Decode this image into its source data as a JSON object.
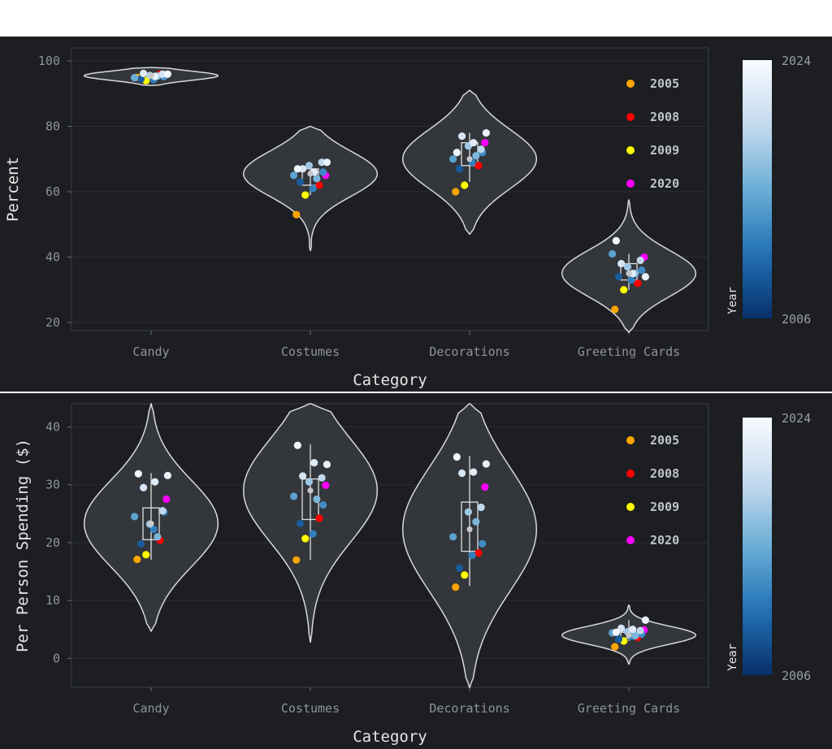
{
  "chart_data": [
    {
      "type": "violin",
      "xlabel": "Category",
      "ylabel": "Percent",
      "categories": [
        "Candy",
        "Costumes",
        "Decorations",
        "Greeting Cards"
      ],
      "ylim": [
        17.5,
        104
      ],
      "yticks": [
        20,
        40,
        60,
        80,
        100
      ],
      "legend": {
        "placement": "top-right",
        "entries": [
          {
            "label": "2005",
            "color": "#ffa500"
          },
          {
            "label": "2008",
            "color": "#ff0000"
          },
          {
            "label": "2009",
            "color": "#ffff00"
          },
          {
            "label": "2020",
            "color": "#ff00ff"
          }
        ]
      },
      "colorbar": {
        "title": "Year",
        "min_label": "2006",
        "max_label": "2024",
        "colormap": "Blues"
      },
      "series": [
        {
          "category": "Candy",
          "violin_range": [
            92.5,
            98
          ],
          "box": {
            "q1": 94.8,
            "median": 95.5,
            "q3": 96.0,
            "whisker_low": 94.0,
            "whisker_high": 96.5
          },
          "points": [
            {
              "year": "2005",
              "value": 95.0
            },
            {
              "year": "2008",
              "value": 96.0
            },
            {
              "year": "2009",
              "value": 94.0
            },
            {
              "year": "2020",
              "value": 95.8
            },
            {
              "year": 2007,
              "value": 94.5
            },
            {
              "year": 2010,
              "value": 94.3
            },
            {
              "year": 2012,
              "value": 95.2
            },
            {
              "year": 2014,
              "value": 94.9
            },
            {
              "year": 2016,
              "value": 95.4
            },
            {
              "year": 2018,
              "value": 95.6
            },
            {
              "year": 2021,
              "value": 96.0
            },
            {
              "year": 2022,
              "value": 96.2
            },
            {
              "year": 2023,
              "value": 95.3
            },
            {
              "year": 2024,
              "value": 96.0
            }
          ]
        },
        {
          "category": "Costumes",
          "violin_range": [
            42,
            80
          ],
          "box": {
            "q1": 62,
            "median": 65.5,
            "q3": 67,
            "whisker_low": 59,
            "whisker_high": 69
          },
          "points": [
            {
              "year": "2005",
              "value": 53
            },
            {
              "year": "2008",
              "value": 62
            },
            {
              "year": "2009",
              "value": 59
            },
            {
              "year": "2020",
              "value": 65
            },
            {
              "year": 2007,
              "value": 63
            },
            {
              "year": 2010,
              "value": 61
            },
            {
              "year": 2011,
              "value": 66
            },
            {
              "year": 2013,
              "value": 65
            },
            {
              "year": 2015,
              "value": 64
            },
            {
              "year": 2017,
              "value": 68
            },
            {
              "year": 2019,
              "value": 69
            },
            {
              "year": 2021,
              "value": 67
            },
            {
              "year": 2022,
              "value": 66
            },
            {
              "year": 2023,
              "value": 69
            },
            {
              "year": 2024,
              "value": 67
            }
          ]
        },
        {
          "category": "Decorations",
          "violin_range": [
            47,
            91
          ],
          "box": {
            "q1": 68,
            "median": 70,
            "q3": 75,
            "whisker_low": 63,
            "whisker_high": 78
          },
          "points": [
            {
              "year": "2005",
              "value": 60
            },
            {
              "year": "2008",
              "value": 68
            },
            {
              "year": "2009",
              "value": 62
            },
            {
              "year": "2020",
              "value": 75
            },
            {
              "year": 2007,
              "value": 67
            },
            {
              "year": 2010,
              "value": 69
            },
            {
              "year": 2011,
              "value": 72
            },
            {
              "year": 2013,
              "value": 70
            },
            {
              "year": 2015,
              "value": 71
            },
            {
              "year": 2017,
              "value": 74
            },
            {
              "year": 2019,
              "value": 73
            },
            {
              "year": 2021,
              "value": 77
            },
            {
              "year": 2022,
              "value": 75
            },
            {
              "year": 2023,
              "value": 78
            },
            {
              "year": 2024,
              "value": 72
            }
          ]
        },
        {
          "category": "Greeting Cards",
          "violin_range": [
            17,
            57.5
          ],
          "box": {
            "q1": 33,
            "median": 35,
            "q3": 38,
            "whisker_low": 30,
            "whisker_high": 41
          },
          "points": [
            {
              "year": "2005",
              "value": 24
            },
            {
              "year": "2008",
              "value": 32
            },
            {
              "year": "2009",
              "value": 30
            },
            {
              "year": "2020",
              "value": 40
            },
            {
              "year": 2007,
              "value": 34
            },
            {
              "year": 2010,
              "value": 33
            },
            {
              "year": 2011,
              "value": 36
            },
            {
              "year": 2013,
              "value": 41
            },
            {
              "year": 2015,
              "value": 35
            },
            {
              "year": 2017,
              "value": 37
            },
            {
              "year": 2019,
              "value": 39
            },
            {
              "year": 2021,
              "value": 38
            },
            {
              "year": 2022,
              "value": 35
            },
            {
              "year": 2023,
              "value": 34
            },
            {
              "year": 2024,
              "value": 45
            }
          ]
        }
      ]
    },
    {
      "type": "violin",
      "xlabel": "Category",
      "ylabel": "Per Person Spending ($)",
      "categories": [
        "Candy",
        "Costumes",
        "Decorations",
        "Greeting Cards"
      ],
      "ylim": [
        -5,
        44
      ],
      "yticks": [
        0,
        10,
        20,
        30,
        40
      ],
      "legend": {
        "placement": "top-right",
        "entries": [
          {
            "label": "2005",
            "color": "#ffa500"
          },
          {
            "label": "2008",
            "color": "#ff0000"
          },
          {
            "label": "2009",
            "color": "#ffff00"
          },
          {
            "label": "2020",
            "color": "#ff00ff"
          }
        ]
      },
      "colorbar": {
        "title": "Year",
        "min_label": "2006",
        "max_label": "2024",
        "colormap": "Blues"
      },
      "series": [
        {
          "category": "Candy",
          "violin_range": [
            4.7,
            44
          ],
          "box": {
            "q1": 20.5,
            "median": 23.3,
            "q3": 26,
            "whisker_low": 17,
            "whisker_high": 32
          },
          "points": [
            {
              "year": "2005",
              "value": 17.1
            },
            {
              "year": "2008",
              "value": 20.4
            },
            {
              "year": "2009",
              "value": 17.9
            },
            {
              "year": "2020",
              "value": 27.5
            },
            {
              "year": 2007,
              "value": 19.8
            },
            {
              "year": 2010,
              "value": 22.3
            },
            {
              "year": 2011,
              "value": 25.3
            },
            {
              "year": 2013,
              "value": 24.5
            },
            {
              "year": 2015,
              "value": 21.0
            },
            {
              "year": 2017,
              "value": 23.2
            },
            {
              "year": 2019,
              "value": 25.5
            },
            {
              "year": 2021,
              "value": 29.5
            },
            {
              "year": 2022,
              "value": 30.5
            },
            {
              "year": 2023,
              "value": 31.6
            },
            {
              "year": 2024,
              "value": 31.9
            }
          ]
        },
        {
          "category": "Costumes",
          "violin_range": [
            2.8,
            44
          ],
          "box": {
            "q1": 24,
            "median": 29,
            "q3": 31,
            "whisker_low": 17,
            "whisker_high": 37
          },
          "points": [
            {
              "year": "2005",
              "value": 17.0
            },
            {
              "year": "2008",
              "value": 24.2
            },
            {
              "year": "2009",
              "value": 20.7
            },
            {
              "year": "2020",
              "value": 29.9
            },
            {
              "year": 2007,
              "value": 23.3
            },
            {
              "year": 2010,
              "value": 21.5
            },
            {
              "year": 2011,
              "value": 26.5
            },
            {
              "year": 2013,
              "value": 28.0
            },
            {
              "year": 2015,
              "value": 27.5
            },
            {
              "year": 2017,
              "value": 30.5
            },
            {
              "year": 2019,
              "value": 31.2
            },
            {
              "year": 2021,
              "value": 31.5
            },
            {
              "year": 2022,
              "value": 33.8
            },
            {
              "year": 2023,
              "value": 33.5
            },
            {
              "year": 2024,
              "value": 36.8
            }
          ]
        },
        {
          "category": "Decorations",
          "violin_range": [
            -5,
            44
          ],
          "box": {
            "q1": 18.5,
            "median": 22.3,
            "q3": 27,
            "whisker_low": 12.5,
            "whisker_high": 35
          },
          "points": [
            {
              "year": "2005",
              "value": 12.3
            },
            {
              "year": "2008",
              "value": 18.2
            },
            {
              "year": "2009",
              "value": 14.4
            },
            {
              "year": "2020",
              "value": 29.6
            },
            {
              "year": 2007,
              "value": 15.6
            },
            {
              "year": 2010,
              "value": 17.8
            },
            {
              "year": 2011,
              "value": 19.8
            },
            {
              "year": 2013,
              "value": 21.0
            },
            {
              "year": 2015,
              "value": 23.6
            },
            {
              "year": 2017,
              "value": 25.3
            },
            {
              "year": 2019,
              "value": 26.1
            },
            {
              "year": 2021,
              "value": 32.0
            },
            {
              "year": 2022,
              "value": 32.2
            },
            {
              "year": 2023,
              "value": 33.6
            },
            {
              "year": 2024,
              "value": 34.8
            }
          ]
        },
        {
          "category": "Greeting Cards",
          "violin_range": [
            -1,
            9.2
          ],
          "box": {
            "q1": 3.5,
            "median": 4.0,
            "q3": 4.5,
            "whisker_low": 3.0,
            "whisker_high": 6.6
          },
          "points": [
            {
              "year": "2005",
              "value": 2.0
            },
            {
              "year": "2008",
              "value": 3.6
            },
            {
              "year": "2009",
              "value": 3.0
            },
            {
              "year": "2020",
              "value": 4.9
            },
            {
              "year": 2007,
              "value": 3.3
            },
            {
              "year": 2010,
              "value": 3.8
            },
            {
              "year": 2011,
              "value": 4.2
            },
            {
              "year": 2013,
              "value": 4.4
            },
            {
              "year": 2015,
              "value": 3.9
            },
            {
              "year": 2017,
              "value": 4.6
            },
            {
              "year": 2019,
              "value": 4.8
            },
            {
              "year": 2021,
              "value": 5.2
            },
            {
              "year": 2022,
              "value": 5.0
            },
            {
              "year": 2023,
              "value": 6.6
            },
            {
              "year": 2024,
              "value": 4.5
            }
          ]
        }
      ]
    }
  ]
}
